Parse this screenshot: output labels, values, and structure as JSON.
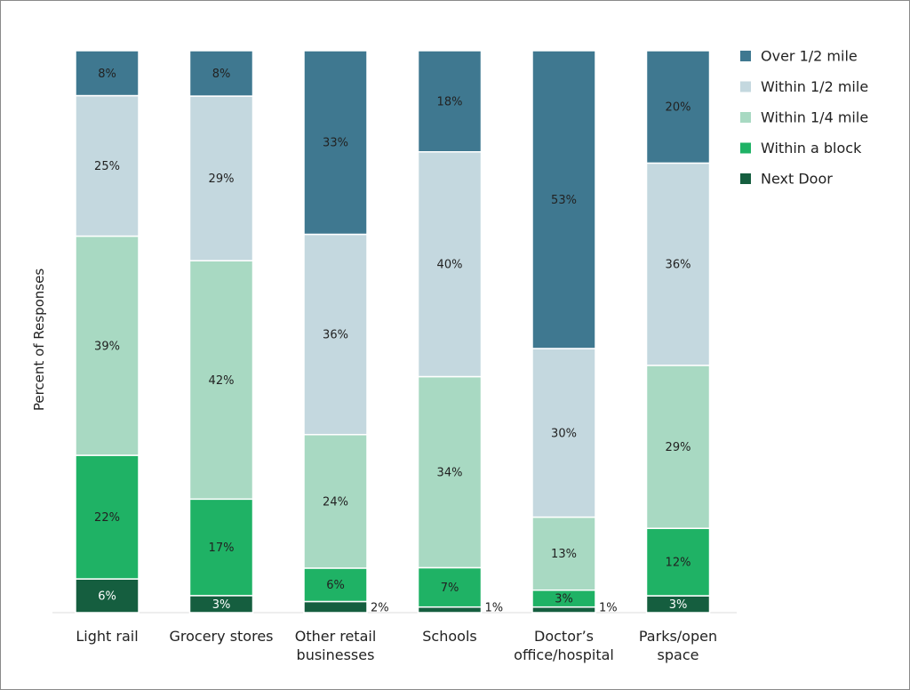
{
  "chart_data": {
    "type": "bar",
    "stacked": true,
    "percent_stacked": true,
    "ylabel": "Percent of Responses",
    "xlabel": "",
    "ylim": [
      0,
      100
    ],
    "grid": false,
    "legend_position": "top-right",
    "categories": [
      [
        "Light rail"
      ],
      [
        "Grocery stores"
      ],
      [
        "Other retail",
        "businesses"
      ],
      [
        "Schools"
      ],
      [
        "Doctor’s",
        "office/hospital"
      ],
      [
        "Parks/open",
        "space"
      ]
    ],
    "series": [
      {
        "name": "Next Door",
        "color": "#155e3f",
        "values": [
          6,
          3,
          2,
          1,
          1,
          3
        ]
      },
      {
        "name": "Within a block",
        "color": "#1fb265",
        "values": [
          22,
          17,
          6,
          7,
          3,
          12
        ]
      },
      {
        "name": "Within 1/4 mile",
        "color": "#a8d9c2",
        "values": [
          39,
          42,
          24,
          34,
          13,
          29
        ]
      },
      {
        "name": "Within 1/2 mile",
        "color": "#c4d8df",
        "values": [
          25,
          29,
          36,
          40,
          30,
          36
        ]
      },
      {
        "name": "Over 1/2 mile",
        "color": "#3f7890",
        "values": [
          8,
          8,
          33,
          18,
          53,
          20
        ]
      }
    ],
    "data_labels": [
      [
        "6%",
        "3%",
        "2%",
        "1%",
        "1%",
        "3%"
      ],
      [
        "22%",
        "17%",
        "6%",
        "7%",
        "3%",
        "12%"
      ],
      [
        "39%",
        "42%",
        "24%",
        "34%",
        "13%",
        "29%"
      ],
      [
        "25%",
        "29%",
        "36%",
        "40%",
        "30%",
        "36%"
      ],
      [
        "8%",
        "8%",
        "33%",
        "18%",
        "53%",
        "20%"
      ]
    ],
    "legend_order": [
      "Over 1/2 mile",
      "Within 1/2 mile",
      "Within 1/4 mile",
      "Within a block",
      "Next Door"
    ]
  }
}
